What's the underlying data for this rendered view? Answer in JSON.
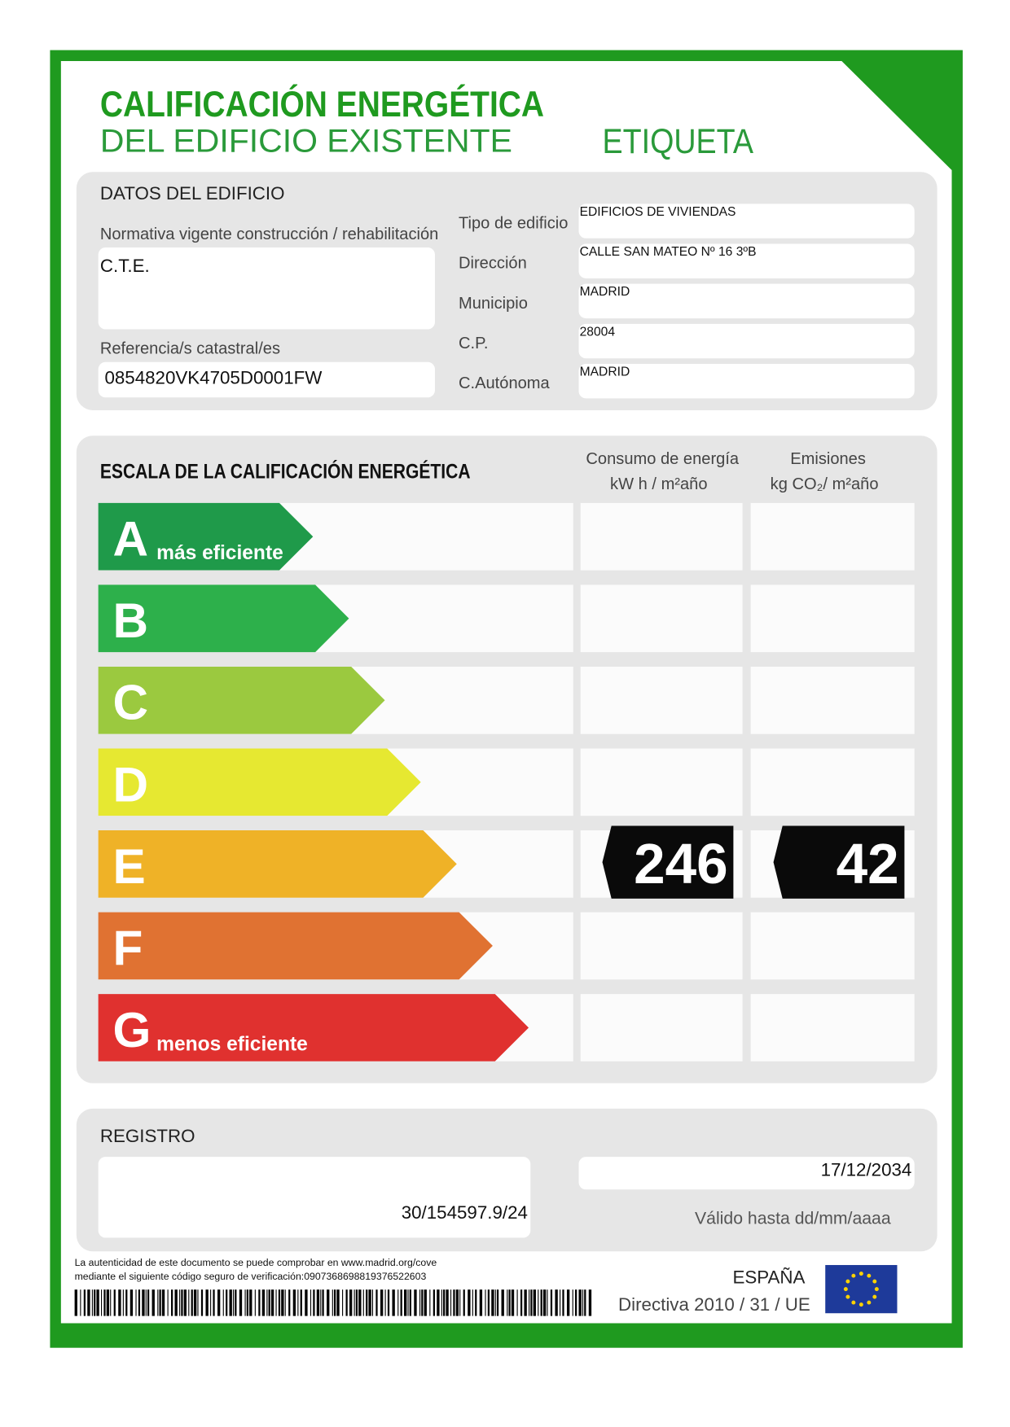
{
  "header": {
    "title": "CALIFICACIÓN ENERGÉTICA",
    "subtitle": "DEL EDIFICIO EXISTENTE",
    "label": "ETIQUETA"
  },
  "building": {
    "title": "DATOS DEL EDIFICIO",
    "normativa_label": "Normativa vigente construcción / rehabilitación",
    "normativa": "C.T.E.",
    "referencia_label": "Referencia/s catastral/es",
    "referencia": "0854820VK4705D0001FW",
    "fields": [
      {
        "label": "Tipo de edificio",
        "value": "EDIFICIOS DE VIVIENDAS"
      },
      {
        "label": "Dirección",
        "value": "CALLE SAN MATEO Nº 16 3ºB"
      },
      {
        "label": "Municipio",
        "value": "MADRID"
      },
      {
        "label": "C.P.",
        "value": "28004"
      },
      {
        "label": "C.Autónoma",
        "value": "MADRID"
      }
    ]
  },
  "scale": {
    "title": "ESCALA DE LA CALIFICACIÓN ENERGÉTICA",
    "consumo_header": [
      "Consumo de energía",
      "kW h / m²año"
    ],
    "emisiones_header": [
      "Emisiones",
      "kg CO₂/ m²año"
    ],
    "classes": [
      {
        "letter": "A",
        "note": "más eficiente",
        "color": "#1f9a4a"
      },
      {
        "letter": "B",
        "color": "#2db04b"
      },
      {
        "letter": "C",
        "color": "#9bc93f"
      },
      {
        "letter": "D",
        "color": "#e6e831"
      },
      {
        "letter": "E",
        "color": "#efb227",
        "consumo": 246,
        "emisiones": 42
      },
      {
        "letter": "F",
        "color": "#e07232"
      },
      {
        "letter": "G",
        "note": "menos eficiente",
        "color": "#e0312f"
      }
    ]
  },
  "registro": {
    "title": "REGISTRO",
    "number": "30/154597.9/24",
    "date": "17/12/2034",
    "date_label": "Válido hasta dd/mm/aaaa"
  },
  "footer": {
    "verification": [
      "La autenticidad de este documento se puede comprobar en www.madrid.org/cove",
      "mediante el siguiente código seguro de verificación:0907368698819376522603"
    ],
    "country": "ESPAÑA",
    "directive": "Directiva 2010 / 31 / UE"
  }
}
